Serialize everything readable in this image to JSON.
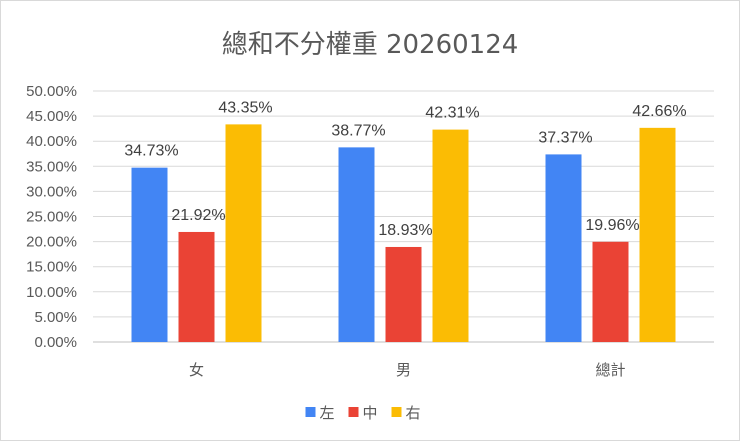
{
  "chart_data": {
    "type": "bar",
    "title": "總和不分權重 20260124",
    "categories": [
      "女",
      "男",
      "總計"
    ],
    "series": [
      {
        "name": "左",
        "color": "#4285F4",
        "values": [
          34.73,
          38.77,
          37.37
        ],
        "labels": [
          "34.73%",
          "38.77%",
          "37.37%"
        ]
      },
      {
        "name": "中",
        "color": "#EA4335",
        "values": [
          21.92,
          18.93,
          19.96
        ],
        "labels": [
          "21.92%",
          "18.93%",
          "19.96%"
        ]
      },
      {
        "name": "右",
        "color": "#FBBC04",
        "values": [
          43.35,
          42.31,
          42.66
        ],
        "labels": [
          "43.35%",
          "42.31%",
          "42.66%"
        ]
      }
    ],
    "ylim": [
      0,
      50
    ],
    "yticks": [
      "0.00%",
      "5.00%",
      "10.00%",
      "15.00%",
      "20.00%",
      "25.00%",
      "30.00%",
      "35.00%",
      "40.00%",
      "45.00%",
      "50.00%"
    ],
    "xlabel": "",
    "ylabel": "",
    "grid": true,
    "legend_position": "bottom"
  }
}
